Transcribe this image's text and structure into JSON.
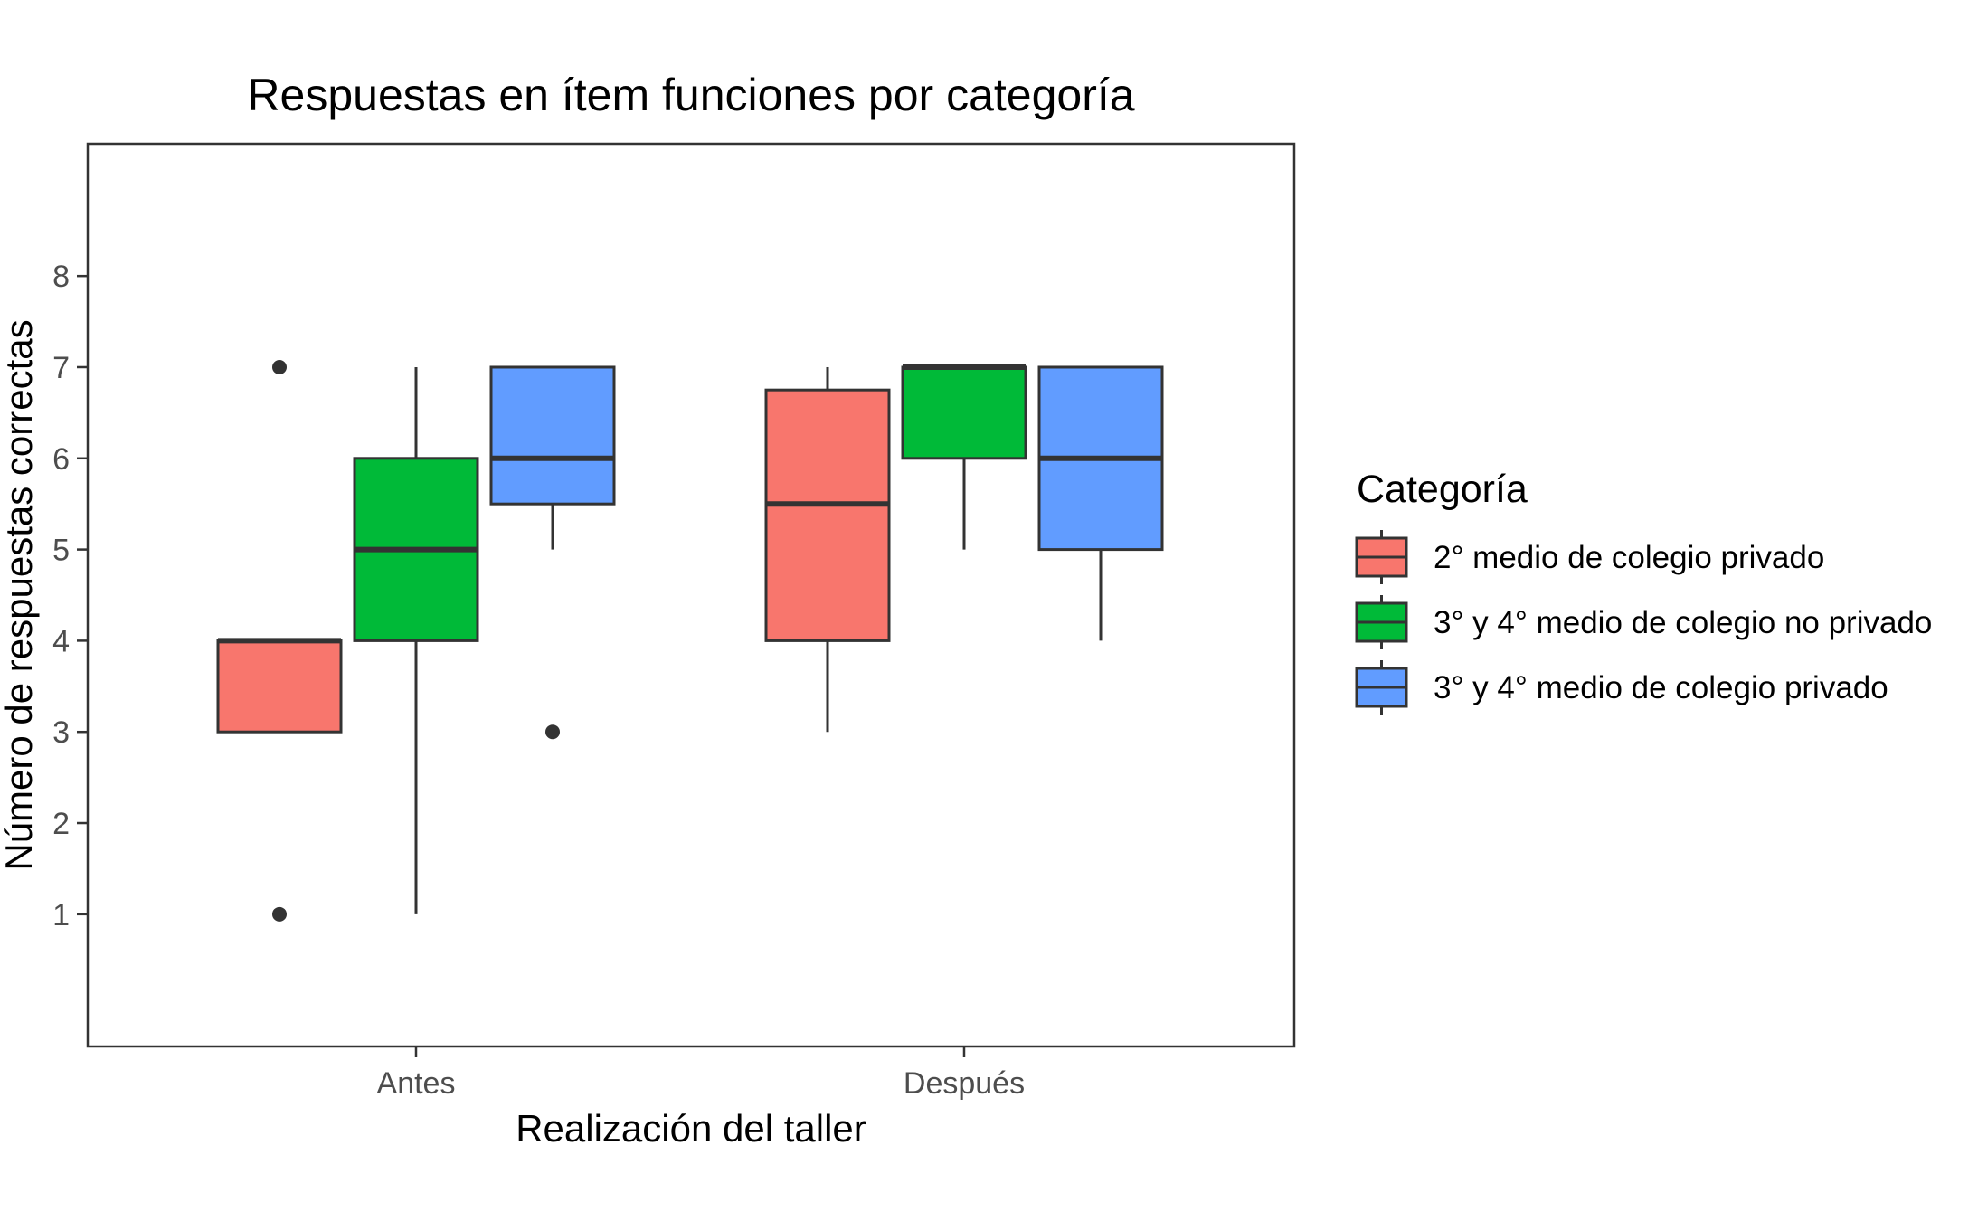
{
  "chart_data": {
    "type": "boxplot",
    "title": "Respuestas en ítem funciones por categoría",
    "xlabel": "Realización del taller",
    "ylabel": "Número de respuestas correctas",
    "categories": [
      "Antes",
      "Después"
    ],
    "ylim": [
      -0.45,
      9.45
    ],
    "yticks": [
      1,
      2,
      3,
      4,
      5,
      6,
      7,
      8
    ],
    "grid": false,
    "legend": {
      "title": "Categoría",
      "position": "right"
    },
    "series": [
      {
        "name": "2° medio de colegio privado",
        "color": "#F8766D",
        "boxes": [
          {
            "category": "Antes",
            "whisker_low": 3,
            "q1": 3,
            "median": 4,
            "q3": 4,
            "whisker_high": 4,
            "outliers": [
              7,
              1
            ]
          },
          {
            "category": "Después",
            "whisker_low": 3,
            "q1": 4,
            "median": 5.5,
            "q3": 6.75,
            "whisker_high": 7,
            "outliers": []
          }
        ]
      },
      {
        "name": "3° y 4° medio de colegio no privado",
        "color": "#00BA38",
        "boxes": [
          {
            "category": "Antes",
            "whisker_low": 1,
            "q1": 4,
            "median": 5,
            "q3": 6,
            "whisker_high": 7,
            "outliers": []
          },
          {
            "category": "Después",
            "whisker_low": 5,
            "q1": 6,
            "median": 7,
            "q3": 7,
            "whisker_high": 7,
            "outliers": []
          }
        ]
      },
      {
        "name": "3° y 4° medio de colegio privado",
        "color": "#619CFF",
        "boxes": [
          {
            "category": "Antes",
            "whisker_low": 5,
            "q1": 5.5,
            "median": 6,
            "q3": 7,
            "whisker_high": 7,
            "outliers": [
              3
            ]
          },
          {
            "category": "Después",
            "whisker_low": 4,
            "q1": 5,
            "median": 6,
            "q3": 7,
            "whisker_high": 7,
            "outliers": []
          }
        ]
      }
    ]
  }
}
